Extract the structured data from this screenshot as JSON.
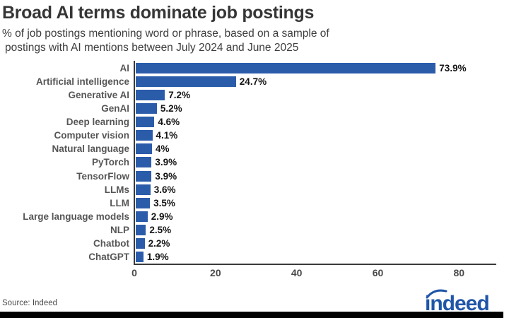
{
  "title": "Broad AI terms dominate job postings",
  "subtitle_line1": "% of job postings mentioning word or phrase, based on a sample of",
  "subtitle_line2": "postings with AI mentions between July 2024 and June 2025",
  "source": "Source: Indeed",
  "logo_text": "indeed",
  "colors": {
    "bar": "#2b5caa",
    "axis": "#3a3a3a",
    "logo": "#2056a8",
    "title_text": "#363636",
    "category_text": "#565656",
    "value_text": "#141414",
    "bottom_strip": "#000000"
  },
  "chart_data": {
    "type": "bar",
    "orientation": "horizontal",
    "title": "Broad AI terms dominate job postings",
    "subtitle": "% of job postings mentioning word or phrase, based on a sample of postings with AI mentions between July 2024 and June 2025",
    "categories": [
      "AI",
      "Artificial intelligence",
      "Generative AI",
      "GenAI",
      "Deep learning",
      "Computer vision",
      "Natural language",
      "PyTorch",
      "TensorFlow",
      "LLMs",
      "LLM",
      "Large language models",
      "NLP",
      "Chatbot",
      "ChatGPT"
    ],
    "values": [
      73.9,
      24.7,
      7.2,
      5.2,
      4.6,
      4.1,
      4,
      3.9,
      3.9,
      3.6,
      3.5,
      2.9,
      2.5,
      2.2,
      1.9
    ],
    "value_labels": [
      "73.9%",
      "24.7%",
      "7.2%",
      "5.2%",
      "4.6%",
      "4.1%",
      "4%",
      "3.9%",
      "3.9%",
      "3.6%",
      "3.5%",
      "2.9%",
      "2.5%",
      "2.2%",
      "1.9%"
    ],
    "xlabel": "",
    "ylabel": "",
    "x_ticks": [
      0,
      20,
      40,
      60,
      80
    ],
    "xlim": [
      0,
      89
    ],
    "grid": false,
    "legend": false,
    "bar_color": "#2b5caa"
  }
}
